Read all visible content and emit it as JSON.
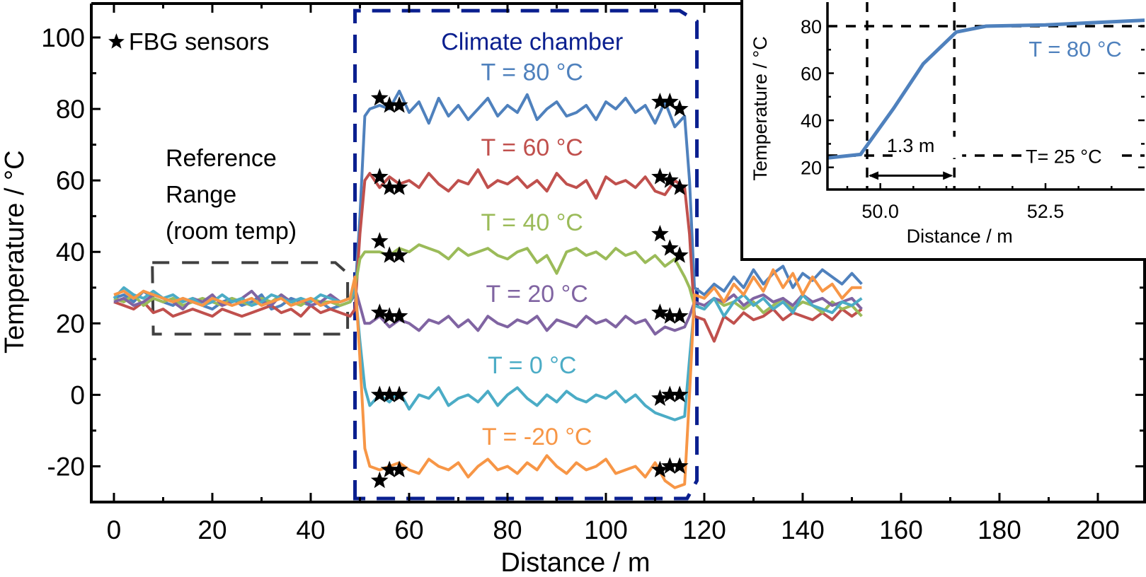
{
  "chart_data": {
    "type": "line",
    "title": "",
    "xlabel": "Distance  /  m",
    "ylabel": "Temperature  /  °C",
    "xlim": [
      -4.6,
      209.5
    ],
    "ylim": [
      -30,
      109.5
    ],
    "xticks": [
      0,
      20,
      40,
      60,
      80,
      100,
      120,
      140,
      160,
      180,
      200
    ],
    "yticks": [
      -20,
      0,
      20,
      40,
      60,
      80,
      100
    ],
    "grid": false,
    "x": [
      0,
      2,
      4,
      6,
      8,
      10,
      12,
      14,
      16,
      18,
      20,
      22,
      24,
      26,
      28,
      30,
      32,
      34,
      36,
      38,
      40,
      42,
      44,
      46,
      48,
      49,
      50,
      51,
      52,
      54,
      56,
      58,
      60,
      62,
      64,
      66,
      68,
      70,
      72,
      74,
      76,
      78,
      80,
      82,
      84,
      86,
      88,
      90,
      92,
      94,
      96,
      98,
      100,
      102,
      104,
      106,
      108,
      110,
      112,
      114,
      116,
      117,
      118,
      120,
      122,
      124,
      126,
      128,
      130,
      132,
      134,
      136,
      138,
      140,
      142,
      144,
      146,
      148,
      150,
      152
    ],
    "series": [
      {
        "name": "T = 80 °C",
        "color": "#4f81bd",
        "label_pos": [
          85,
          88
        ],
        "values": [
          27,
          28,
          26,
          29,
          27,
          26,
          25,
          27,
          26,
          25,
          24,
          26,
          27,
          25,
          26,
          28,
          24,
          25,
          27,
          26,
          25,
          26,
          24,
          25,
          26,
          28,
          50,
          78,
          80,
          81,
          80,
          85,
          79,
          82,
          76,
          83,
          78,
          81,
          77,
          80,
          83,
          78,
          81,
          79,
          84,
          77,
          80,
          82,
          78,
          79,
          81,
          77,
          82,
          80,
          83,
          79,
          81,
          76,
          82,
          75,
          78,
          60,
          30,
          28,
          31,
          29,
          33,
          30,
          35,
          31,
          34,
          36,
          30,
          34,
          32,
          35,
          33,
          31,
          34,
          31
        ],
        "sensors": [
          [
            54,
            83
          ],
          [
            56,
            81
          ],
          [
            58,
            81
          ],
          [
            111,
            82
          ],
          [
            113,
            82
          ],
          [
            115,
            80
          ]
        ]
      },
      {
        "name": "T = 60 °C",
        "color": "#c0504d",
        "label_pos": [
          85,
          67
        ],
        "values": [
          26,
          25,
          24,
          26,
          23,
          24,
          22,
          23,
          24,
          23,
          22,
          24,
          23,
          22,
          23,
          24,
          25,
          23,
          24,
          22,
          25,
          23,
          24,
          23,
          22,
          24,
          45,
          60,
          62,
          58,
          61,
          59,
          60,
          58,
          62,
          59,
          57,
          60,
          59,
          63,
          58,
          60,
          59,
          61,
          58,
          60,
          57,
          62,
          59,
          58,
          60,
          55,
          61,
          59,
          60,
          58,
          61,
          57,
          56,
          60,
          58,
          45,
          22,
          21,
          15,
          22,
          20,
          23,
          21,
          22,
          24,
          21,
          23,
          22,
          21,
          23,
          21,
          24,
          22,
          24
        ],
        "sensors": [
          [
            54,
            61
          ],
          [
            56,
            58
          ],
          [
            58,
            58
          ],
          [
            111,
            61
          ],
          [
            113,
            60
          ],
          [
            115,
            58
          ]
        ]
      },
      {
        "name": "T = 40 °C",
        "color": "#9bbb59",
        "label_pos": [
          85,
          46
        ],
        "values": [
          27,
          26,
          28,
          25,
          27,
          26,
          27,
          25,
          26,
          27,
          26,
          25,
          27,
          26,
          25,
          27,
          26,
          28,
          26,
          25,
          27,
          26,
          26,
          25,
          26,
          30,
          38,
          40,
          40,
          40,
          39,
          41,
          40,
          42,
          41,
          40,
          38,
          41,
          39,
          40,
          41,
          39,
          38,
          40,
          41,
          37,
          39,
          34,
          40,
          41,
          39,
          40,
          38,
          41,
          39,
          40,
          37,
          39,
          36,
          38,
          33,
          30,
          25,
          24,
          27,
          25,
          26,
          24,
          26,
          23,
          25,
          27,
          24,
          26,
          25,
          23,
          26,
          24,
          25,
          22
        ],
        "sensors": [
          [
            54,
            43
          ],
          [
            56,
            39
          ],
          [
            58,
            39
          ],
          [
            111,
            45
          ],
          [
            113,
            41
          ],
          [
            115,
            39
          ]
        ]
      },
      {
        "name": "T = 20 °C",
        "color": "#8064a2",
        "label_pos": [
          86,
          26
        ],
        "values": [
          26,
          27,
          25,
          26,
          28,
          27,
          26,
          24,
          27,
          26,
          28,
          25,
          26,
          27,
          29,
          26,
          25,
          28,
          26,
          27,
          25,
          26,
          28,
          26,
          27,
          30,
          25,
          20,
          20,
          22,
          19,
          21,
          20,
          18,
          21,
          20,
          22,
          19,
          21,
          18,
          22,
          20,
          19,
          21,
          20,
          22,
          18,
          21,
          20,
          19,
          22,
          20,
          21,
          19,
          22,
          20,
          21,
          17,
          19,
          18,
          19,
          22,
          26,
          25,
          27,
          26,
          28,
          25,
          27,
          28,
          26,
          27,
          25,
          28,
          26,
          27,
          25,
          26,
          27,
          24
        ],
        "sensors": [
          [
            54,
            23
          ],
          [
            56,
            22
          ],
          [
            58,
            22
          ],
          [
            111,
            23
          ],
          [
            113,
            22
          ],
          [
            115,
            22
          ]
        ]
      },
      {
        "name": "T = 0 °C",
        "color": "#4bacc6",
        "label_pos": [
          85,
          6
        ],
        "values": [
          27,
          30,
          28,
          27,
          29,
          27,
          28,
          26,
          27,
          25,
          26,
          28,
          26,
          27,
          25,
          26,
          28,
          27,
          26,
          27,
          26,
          28,
          27,
          26,
          27,
          30,
          15,
          2,
          -3,
          0,
          -2,
          1,
          -4,
          0,
          -1,
          2,
          -3,
          -1,
          0,
          -2,
          1,
          -3,
          0,
          2,
          -1,
          -3,
          0,
          -2,
          1,
          -1,
          -2,
          0,
          -1,
          1,
          -2,
          0,
          -3,
          -5,
          -6,
          -7,
          -6,
          10,
          25,
          24,
          27,
          22,
          26,
          28,
          25,
          27,
          24,
          26,
          23,
          28,
          25,
          24,
          23,
          26,
          25,
          27
        ],
        "sensors": [
          [
            54,
            0
          ],
          [
            56,
            0
          ],
          [
            58,
            0
          ],
          [
            111,
            -1
          ],
          [
            113,
            0
          ],
          [
            115,
            0
          ]
        ]
      },
      {
        "name": "T = -20 °C",
        "color": "#f79646",
        "label_pos": [
          86,
          -14
        ],
        "values": [
          28,
          29,
          27,
          29,
          28,
          27,
          26,
          27,
          26,
          25,
          27,
          26,
          25,
          26,
          27,
          25,
          26,
          27,
          25,
          26,
          27,
          25,
          26,
          26,
          27,
          33,
          10,
          -15,
          -20,
          -21,
          -20,
          -19,
          -21,
          -22,
          -18,
          -20,
          -21,
          -19,
          -23,
          -20,
          -18,
          -21,
          -20,
          -22,
          -19,
          -21,
          -17,
          -20,
          -22,
          -19,
          -21,
          -20,
          -18,
          -22,
          -21,
          -20,
          -23,
          -19,
          -24,
          -26,
          -25,
          0,
          28,
          27,
          30,
          26,
          31,
          28,
          33,
          29,
          35,
          30,
          34,
          28,
          33,
          29,
          31,
          27,
          30,
          30
        ],
        "sensors": [
          [
            54,
            -24
          ],
          [
            56,
            -21
          ],
          [
            58,
            -21
          ],
          [
            111,
            -21
          ],
          [
            113,
            -20
          ],
          [
            115,
            -20
          ]
        ]
      }
    ],
    "annotations": {
      "legend_star_label": "FBG sensors",
      "climate_chamber": "Climate chamber",
      "climate_chamber_color": "#0a1f8f",
      "reference_lines": [
        "Reference",
        "Range",
        "(room temp)"
      ]
    },
    "inset": {
      "type": "line",
      "xlabel": "Distance / m",
      "ylabel": "Temperature / °C",
      "xlim": [
        49.2,
        54.0
      ],
      "ylim": [
        10.6,
        90.2
      ],
      "xticks": [
        "50.0",
        "52.5"
      ],
      "yticks": [
        20,
        40,
        60,
        80
      ],
      "series": {
        "name": "T = 80 °C",
        "color": "#4f81bd",
        "x": [
          49.2,
          49.7,
          50.2,
          50.65,
          51.15,
          51.6,
          52.5,
          54.0
        ],
        "values": [
          24,
          25.5,
          45,
          64,
          77.5,
          80,
          80.5,
          82.5
        ]
      },
      "ref_lines": {
        "upper_T": 80,
        "lower_T": 25,
        "start_m": 49.8,
        "end_m": 51.12
      },
      "width_label": "1.3 m",
      "lower_label": "T= 25 °C",
      "series_label": "T = 80 °C"
    }
  }
}
